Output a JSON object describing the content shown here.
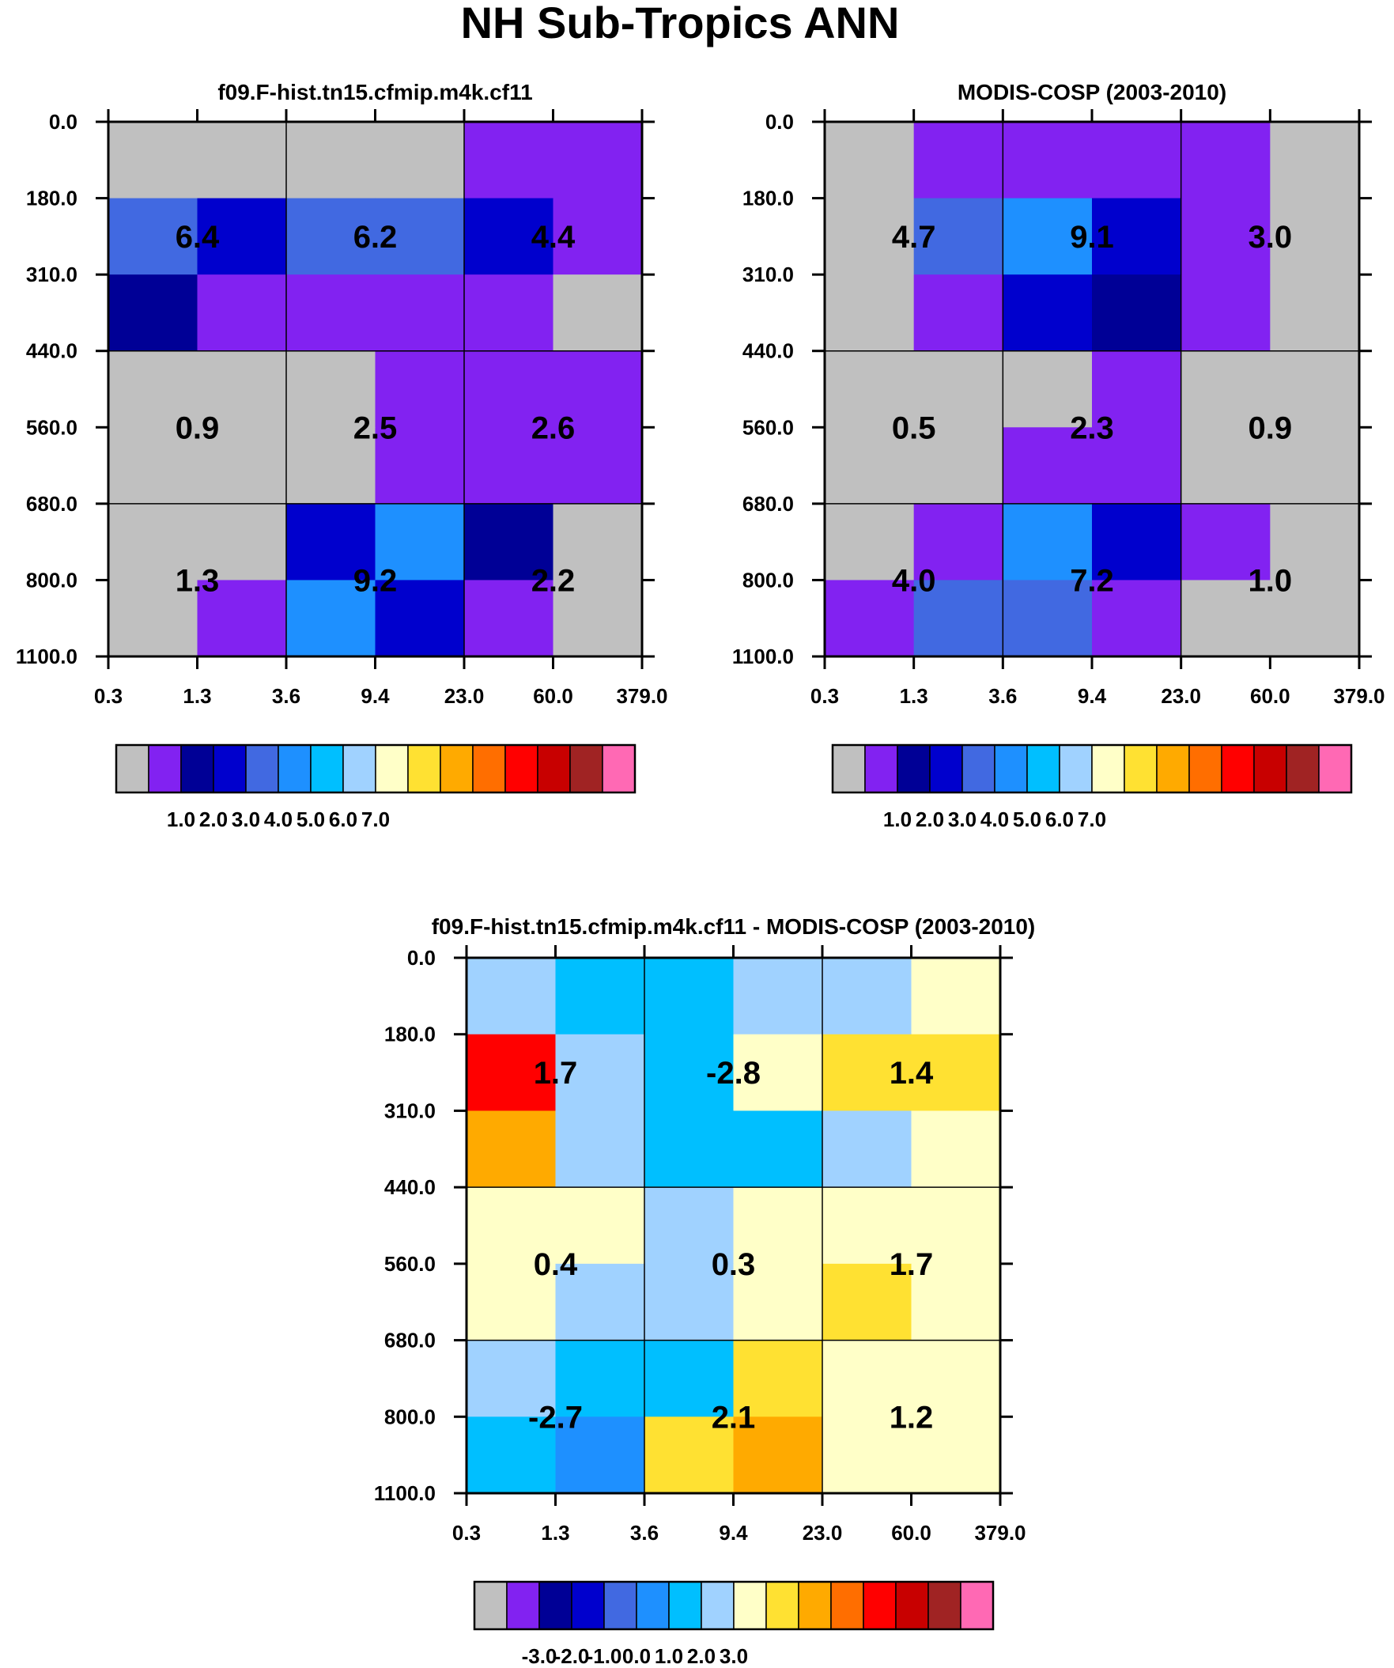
{
  "figure_title": "NH Sub-Tropics ANN",
  "colors": {
    "palette": [
      "#c0c0c0",
      "#8222f1",
      "#000096",
      "#0000cd",
      "#4169e1",
      "#1e90ff",
      "#00bfff",
      "#a0d2ff",
      "#ffffc8",
      "#ffe132",
      "#ffaa00",
      "#ff6e00",
      "#ff0000",
      "#c80000",
      "#a02323",
      "#ff69b4"
    ],
    "grid_line": "#000000",
    "background": "#ffffff"
  },
  "chart_data": [
    {
      "type": "heatmap",
      "title": "f09.F-hist.tn15.cfmip.m4k.cf11",
      "x_tick_labels": [
        "0.3",
        "1.3",
        "3.6",
        "9.4",
        "23.0",
        "60.0",
        "379.0"
      ],
      "y_tick_labels": [
        "0.0",
        "180.0",
        "310.0",
        "440.0",
        "560.0",
        "680.0",
        "800.0",
        "1100.0"
      ],
      "cell_color_index": [
        [
          0,
          0,
          0,
          0,
          1,
          1
        ],
        [
          4,
          3,
          4,
          4,
          3,
          1
        ],
        [
          2,
          1,
          1,
          1,
          1,
          0
        ],
        [
          0,
          0,
          0,
          1,
          1,
          1
        ],
        [
          0,
          0,
          0,
          1,
          1,
          1
        ],
        [
          0,
          0,
          3,
          5,
          2,
          0
        ],
        [
          0,
          1,
          5,
          3,
          1,
          0
        ]
      ],
      "block_values": [
        [
          "6.4",
          "6.2",
          "4.4"
        ],
        [
          "0.9",
          "2.5",
          "2.6"
        ],
        [
          "1.3",
          "9.2",
          "2.2"
        ]
      ],
      "colorbar": {
        "tick_labels": [
          "1.0",
          "2.0",
          "3.0",
          "4.0",
          "5.0",
          "6.0",
          "7.0"
        ]
      }
    },
    {
      "type": "heatmap",
      "title": "MODIS-COSP (2003-2010)",
      "x_tick_labels": [
        "0.3",
        "1.3",
        "3.6",
        "9.4",
        "23.0",
        "60.0",
        "379.0"
      ],
      "y_tick_labels": [
        "0.0",
        "180.0",
        "310.0",
        "440.0",
        "560.0",
        "680.0",
        "800.0",
        "1100.0"
      ],
      "cell_color_index": [
        [
          0,
          1,
          1,
          1,
          1,
          0
        ],
        [
          0,
          4,
          5,
          3,
          1,
          0
        ],
        [
          0,
          1,
          3,
          2,
          1,
          0
        ],
        [
          0,
          0,
          0,
          1,
          0,
          0
        ],
        [
          0,
          0,
          1,
          1,
          0,
          0
        ],
        [
          0,
          1,
          5,
          3,
          1,
          0
        ],
        [
          1,
          4,
          4,
          1,
          0,
          0
        ]
      ],
      "block_values": [
        [
          "4.7",
          "9.1",
          "3.0"
        ],
        [
          "0.5",
          "2.3",
          "0.9"
        ],
        [
          "4.0",
          "7.2",
          "1.0"
        ]
      ],
      "colorbar": {
        "tick_labels": [
          "1.0",
          "2.0",
          "3.0",
          "4.0",
          "5.0",
          "6.0",
          "7.0"
        ]
      }
    },
    {
      "type": "heatmap",
      "title": "f09.F-hist.tn15.cfmip.m4k.cf11 - MODIS-COSP (2003-2010)",
      "x_tick_labels": [
        "0.3",
        "1.3",
        "3.6",
        "9.4",
        "23.0",
        "60.0",
        "379.0"
      ],
      "y_tick_labels": [
        "0.0",
        "180.0",
        "310.0",
        "440.0",
        "560.0",
        "680.0",
        "800.0",
        "1100.0"
      ],
      "cell_color_index": [
        [
          7,
          6,
          6,
          7,
          7,
          8
        ],
        [
          12,
          7,
          6,
          8,
          9,
          9
        ],
        [
          10,
          7,
          6,
          6,
          7,
          8
        ],
        [
          8,
          8,
          7,
          8,
          8,
          8
        ],
        [
          8,
          7,
          7,
          8,
          9,
          8
        ],
        [
          7,
          6,
          6,
          9,
          8,
          8
        ],
        [
          6,
          5,
          9,
          10,
          8,
          8
        ]
      ],
      "block_values": [
        [
          "1.7",
          "-2.8",
          "1.4"
        ],
        [
          "0.4",
          "0.3",
          "1.7"
        ],
        [
          "-2.7",
          "2.1",
          "1.2"
        ]
      ],
      "colorbar": {
        "tick_labels": [
          "-3.0",
          "-2.0",
          "-1.0",
          "0.0",
          "1.0",
          "2.0",
          "3.0"
        ]
      }
    }
  ]
}
